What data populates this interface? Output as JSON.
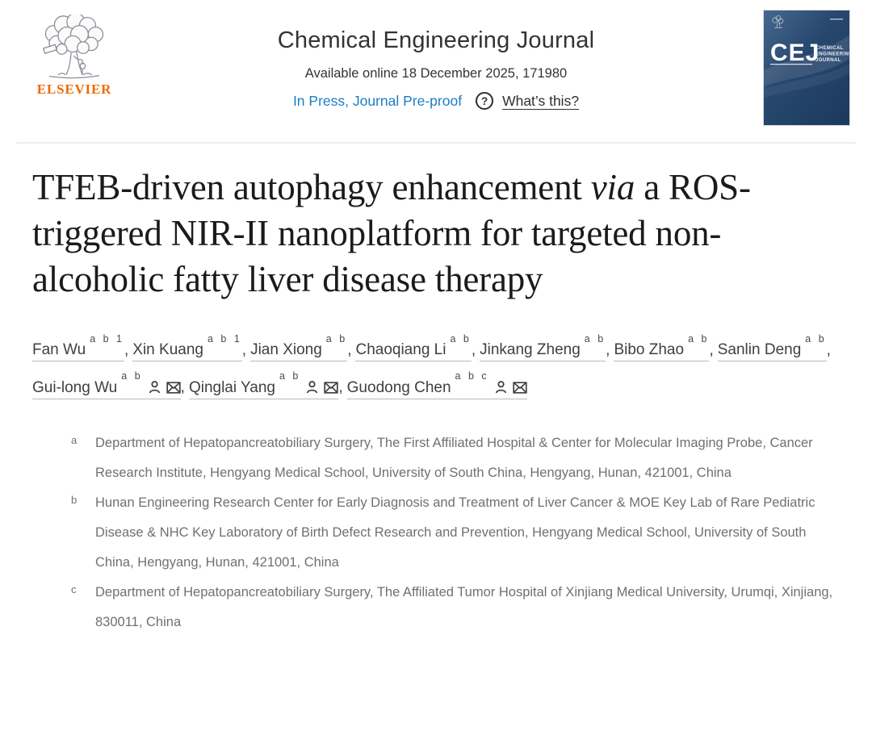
{
  "colors": {
    "link_blue": "#1b7ec3",
    "elsevier_orange": "#ef6a00",
    "affiliation_gray": "#707070"
  },
  "header": {
    "elsevier_wordmark": "ELSEVIER",
    "journal_title": "Chemical Engineering Journal",
    "availability": "Available online 18 December 2025, 171980",
    "in_press_label": "In Press, Journal Pre-proof",
    "help_icon": "?",
    "whats_this_label": "What’s this?"
  },
  "cover": {
    "initials": "CEJ",
    "name_lines": [
      "CHEMICAL",
      "ENGINEERING",
      "JOURNAL"
    ]
  },
  "article": {
    "title_before_italic": "TFEB-driven autophagy enhancement",
    "title_italic": "via",
    "title_after_italic": "a ROS-triggered NIR-II nanoplatform for targeted non-alcoholic fatty liver disease therapy"
  },
  "authors": [
    {
      "name": "Fan Wu",
      "sup": "a b 1",
      "icons": []
    },
    {
      "name": "Xin Kuang",
      "sup": "a b 1",
      "icons": []
    },
    {
      "name": "Jian Xiong",
      "sup": "a b",
      "icons": []
    },
    {
      "name": "Chaoqiang Li",
      "sup": "a b",
      "icons": []
    },
    {
      "name": "Jinkang Zheng",
      "sup": "a b",
      "icons": []
    },
    {
      "name": "Bibo Zhao",
      "sup": "a b",
      "icons": []
    },
    {
      "name": "Sanlin Deng",
      "sup": "a b",
      "icons": []
    },
    {
      "name": "Gui-long Wu",
      "sup": "a b",
      "icons": [
        "person-icon",
        "envelope-icon"
      ]
    },
    {
      "name": "Qinglai Yang",
      "sup": "a b",
      "icons": [
        "person-icon",
        "envelope-icon"
      ]
    },
    {
      "name": "Guodong Chen",
      "sup": "a b c",
      "icons": [
        "person-icon",
        "envelope-icon"
      ]
    }
  ],
  "affiliations": [
    {
      "label": "a",
      "text": "Department of Hepatopancreatobiliary Surgery, The First Affiliated Hospital & Center for Molecular Imaging Probe, Cancer Research Institute, Hengyang Medical School, University of South China, Hengyang, Hunan, 421001, China"
    },
    {
      "label": "b",
      "text": "Hunan Engineering Research Center for Early Diagnosis and Treatment of Liver Cancer & MOE Key Lab of Rare Pediatric Disease & NHC Key Laboratory of Birth Defect Research and Prevention, Hengyang Medical School, University of South China, Hengyang, Hunan, 421001, China"
    },
    {
      "label": "c",
      "text": "Department of Hepatopancreatobiliary Surgery, The Affiliated Tumor Hospital of Xinjiang Medical University, Urumqi, Xinjiang, 830011, China"
    }
  ]
}
